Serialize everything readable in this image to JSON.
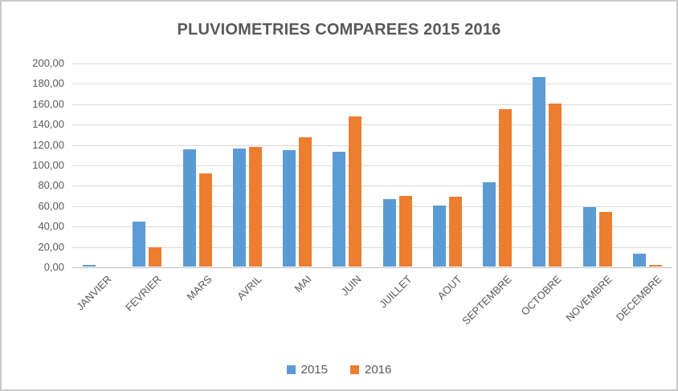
{
  "chart_data": {
    "type": "bar",
    "title": "PLUVIOMETRIES COMPAREES 2015 2016",
    "categories": [
      "JANVIER",
      "FEVRIER",
      "MARS",
      "AVRIL",
      "MAI",
      "JUIN",
      "JUILLET",
      "AOUT",
      "SEPTEMBRE",
      "OCTOBRE",
      "NOVEMBRE",
      "DECEMBRE"
    ],
    "series": [
      {
        "name": "2015",
        "color": "#5B9BD5",
        "values": [
          1.5,
          44,
          115,
          116,
          114,
          112.5,
          66.5,
          59.5,
          82.5,
          185.5,
          58,
          12.5
        ]
      },
      {
        "name": "2016",
        "color": "#ED7D31",
        "values": [
          0,
          19,
          91.5,
          117,
          127,
          147.5,
          69,
          68.5,
          154.5,
          159.5,
          53.5,
          1.5
        ]
      }
    ],
    "ylim": [
      0,
      200
    ],
    "ytick_step": 20,
    "ytick_labels_top_down": [
      "200,00",
      "180,00",
      "160,00",
      "140,00",
      "120,00",
      "100,00",
      "80,00",
      "60,00",
      "40,00",
      "20,00",
      "0,00"
    ],
    "grid": true,
    "legend_position": "bottom",
    "colors": {
      "title_text": "#595959",
      "axis_text": "#595959",
      "gridline": "#D9D9D9",
      "series_2015": "#5B9BD5",
      "series_2016": "#ED7D31"
    }
  }
}
